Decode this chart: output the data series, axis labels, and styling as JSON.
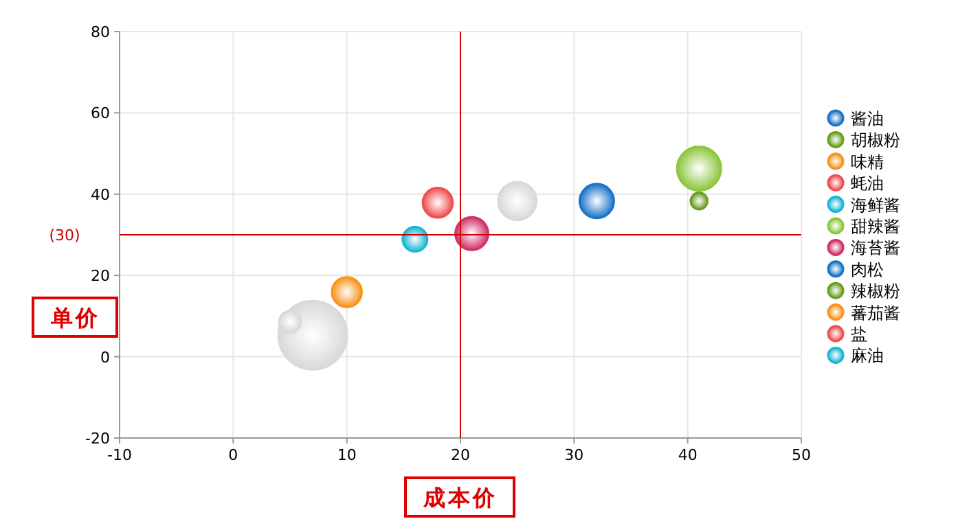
{
  "chart_data": {
    "type": "bubble",
    "xlabel": "成本价",
    "ylabel": "单价",
    "xlim": [
      -10,
      50
    ],
    "xticks": [
      -10,
      0,
      10,
      20,
      30,
      40,
      50
    ],
    "ylim": [
      -20,
      80
    ],
    "yticks": [
      -20,
      0,
      20,
      40,
      60,
      80
    ],
    "grid": true,
    "legend": "right",
    "ref_lines": [
      {
        "axis": "x",
        "value": 20,
        "color": "#cc0000"
      },
      {
        "axis": "y",
        "value": 30,
        "label": "(30)",
        "color": "#cc0000"
      }
    ],
    "series": [
      {
        "name": "酱油",
        "color": "#1a73c9",
        "x": [
          32
        ],
        "values": [
          38.3
        ],
        "sizes": [
          0.25
        ]
      },
      {
        "name": "胡椒粉",
        "color": "#6a9e1f",
        "x": [
          41
        ],
        "values": [
          38.3
        ],
        "sizes": [
          0.06
        ]
      },
      {
        "name": "味精",
        "color": "#f7941d",
        "x": [
          10
        ],
        "values": [
          15.9
        ],
        "sizes": [
          0.19
        ]
      },
      {
        "name": "蚝油",
        "color": "#f04e4e",
        "x": [
          18
        ],
        "values": [
          37.9
        ],
        "sizes": [
          0.19
        ]
      },
      {
        "name": "海鲜酱",
        "color": "#1ab6d3",
        "x": [
          16
        ],
        "values": [
          28.9
        ],
        "sizes": [
          0.13
        ]
      },
      {
        "name": "甜辣酱",
        "color": "#8dc63f",
        "x": [
          41
        ],
        "values": [
          46.3
        ],
        "sizes": [
          0.41
        ]
      },
      {
        "name": "海苔酱",
        "color": "#d1316b",
        "x": [
          21
        ],
        "values": [
          30.3
        ],
        "sizes": [
          0.23
        ]
      },
      {
        "name": "肉松",
        "color": "#1a73c9"
      },
      {
        "name": "辣椒粉",
        "color": "#6a9e1f"
      },
      {
        "name": "蕃茄酱",
        "color": "#f7941d"
      },
      {
        "name": "盐",
        "color": "#f04e4e"
      },
      {
        "name": "麻油",
        "color": "#1ab6d3"
      },
      {
        "color": "#d9d9d9",
        "x": [
          7,
          5,
          25
        ],
        "values": [
          5.3,
          8.6,
          38.3
        ],
        "sizes": [
          1,
          0.1,
          0.31
        ]
      }
    ]
  }
}
